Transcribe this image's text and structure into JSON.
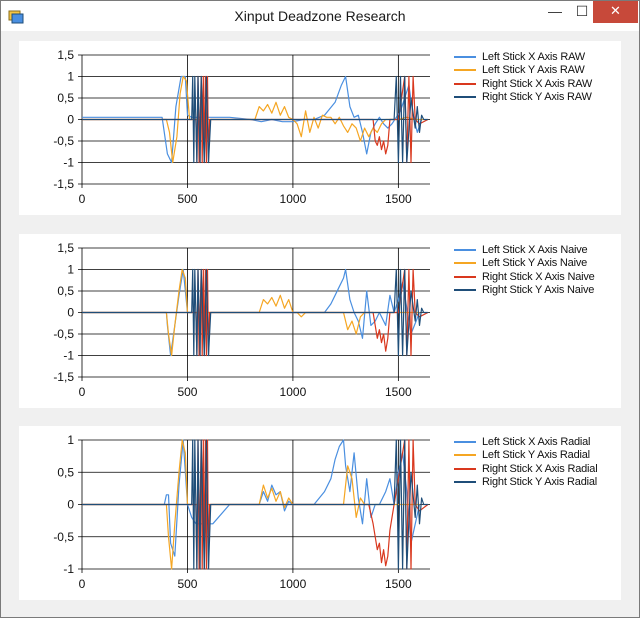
{
  "window": {
    "title": "Xinput Deadzone Research",
    "icons": {
      "app": "app-window-icon",
      "minimize": "minimize-icon",
      "maximize": "maximize-icon",
      "close": "close-icon"
    },
    "minimize_glyph": "—",
    "maximize_glyph": "☐",
    "close_glyph": "✕"
  },
  "colors": {
    "left_x": "#4a8fe0",
    "left_y": "#f5a623",
    "right_x": "#d9381e",
    "right_y": "#1f4e79",
    "grid": "#000000",
    "panel_bg": "#ffffff",
    "window_bg": "#f0f0f0"
  },
  "chart_data": [
    {
      "type": "line",
      "xlim": [
        0,
        1650
      ],
      "ylim": [
        -1.5,
        1.5
      ],
      "xticks": [
        0,
        500,
        1000,
        1500
      ],
      "xtick_labels": [
        "0",
        "500",
        "1000",
        "1500"
      ],
      "yticks": [
        -1.5,
        -1,
        -0.5,
        0,
        0.5,
        1,
        1.5
      ],
      "ytick_labels": [
        "-1,5",
        "-1",
        "-0,5",
        "0",
        "0,5",
        "1",
        "1,5"
      ],
      "grid": true,
      "legend": "right",
      "series": [
        {
          "name": "Left Stick X Axis RAW",
          "key": "left_x",
          "x": [
            0,
            380,
            405,
            425,
            445,
            470,
            490,
            500,
            520,
            540,
            560,
            580,
            600,
            620,
            700,
            800,
            850,
            900,
            950,
            1000,
            1050,
            1100,
            1150,
            1200,
            1230,
            1250,
            1270,
            1290,
            1310,
            1330,
            1350,
            1370,
            1390,
            1410,
            1430,
            1450,
            1470,
            1490,
            1510,
            1530,
            1550,
            1570,
            1590,
            1610
          ],
          "y": [
            0.05,
            0.05,
            -0.8,
            -1.0,
            0.3,
            1.0,
            1.0,
            0.1,
            0.05,
            0.05,
            0.05,
            0.05,
            0.05,
            0.05,
            0.05,
            0.0,
            -0.05,
            0.0,
            -0.05,
            -0.05,
            0.0,
            0.0,
            0.1,
            0.4,
            0.8,
            1.0,
            0.3,
            0.05,
            0.1,
            -0.3,
            -0.8,
            -0.3,
            -0.1,
            0.05,
            -0.1,
            -0.2,
            -0.1,
            0.05,
            0.2,
            0.5,
            0.8,
            0.1,
            -0.3,
            0.0
          ]
        },
        {
          "name": "Left Stick Y Axis RAW",
          "key": "left_y",
          "x": [
            0,
            400,
            415,
            430,
            450,
            465,
            480,
            495,
            510,
            540,
            600,
            700,
            820,
            840,
            860,
            880,
            900,
            920,
            940,
            960,
            980,
            1000,
            1020,
            1040,
            1060,
            1080,
            1100,
            1120,
            1140,
            1160,
            1180,
            1200,
            1220,
            1240,
            1260,
            1280,
            1300,
            1320,
            1340,
            1360,
            1380,
            1400,
            1420,
            1440,
            1460,
            1500,
            1540,
            1580,
            1620
          ],
          "y": [
            0,
            0,
            -0.3,
            -1.0,
            -0.4,
            0.6,
            1.0,
            0.9,
            0.0,
            0.0,
            0.0,
            0.0,
            0.0,
            0.3,
            0.2,
            0.35,
            0.15,
            0.4,
            0.1,
            0.3,
            0.05,
            0.0,
            -0.1,
            -0.4,
            0.2,
            -0.3,
            0.05,
            -0.2,
            0.1,
            0.05,
            0.05,
            -0.1,
            0.05,
            -0.15,
            -0.3,
            -0.1,
            -0.2,
            -0.5,
            -0.2,
            -0.4,
            -0.2,
            -0.3,
            -0.1,
            0.0,
            0.0,
            0.0,
            0.05,
            0.0,
            0.0
          ]
        },
        {
          "name": "Right Stick X Axis RAW",
          "key": "right_x",
          "x": [
            0,
            540,
            545,
            550,
            555,
            565,
            570,
            575,
            580,
            585,
            590,
            595,
            600,
            605,
            700,
            1000,
            1380,
            1390,
            1400,
            1410,
            1420,
            1430,
            1440,
            1450,
            1460,
            1500,
            1530,
            1540,
            1550,
            1560,
            1570,
            1580,
            1600,
            1640
          ],
          "y": [
            0,
            0,
            -1.0,
            1.0,
            -1.0,
            1.0,
            -1.0,
            1.0,
            -1.0,
            1.0,
            -1.0,
            1.0,
            -1.0,
            0.0,
            0.0,
            0.0,
            0.0,
            -0.5,
            -0.6,
            -0.4,
            -0.7,
            -0.5,
            -0.8,
            -0.6,
            0.0,
            0.0,
            1.0,
            -1.0,
            1.0,
            -1.0,
            1.0,
            0.0,
            -0.1,
            0.0
          ]
        },
        {
          "name": "Right Stick Y Axis RAW",
          "key": "right_y",
          "x": [
            0,
            520,
            525,
            530,
            535,
            545,
            550,
            560,
            565,
            580,
            590,
            600,
            610,
            700,
            1000,
            1300,
            1400,
            1480,
            1490,
            1500,
            1510,
            1520,
            1530,
            1540,
            1560,
            1580,
            1590,
            1600,
            1610,
            1620,
            1640
          ],
          "y": [
            0.0,
            0.0,
            1.0,
            -1.0,
            1.0,
            -1.0,
            1.0,
            -1.0,
            1.0,
            -1.0,
            1.0,
            -1.0,
            0.0,
            0.0,
            0.0,
            0.0,
            0.0,
            0.0,
            1.0,
            -1.0,
            1.0,
            -1.0,
            1.0,
            -1.0,
            0.5,
            -0.2,
            0.3,
            -0.3,
            0.1,
            0.0,
            0.0
          ]
        }
      ]
    },
    {
      "type": "line",
      "xlim": [
        0,
        1650
      ],
      "ylim": [
        -1.5,
        1.5
      ],
      "xticks": [
        0,
        500,
        1000,
        1500
      ],
      "xtick_labels": [
        "0",
        "500",
        "1000",
        "1500"
      ],
      "yticks": [
        -1.5,
        -1,
        -0.5,
        0,
        0.5,
        1,
        1.5
      ],
      "ytick_labels": [
        "-1,5",
        "-1",
        "-0,5",
        "0",
        "0,5",
        "1",
        "1,5"
      ],
      "grid": true,
      "legend": "right",
      "series": [
        {
          "name": "Left Stick X Axis Naive",
          "key": "left_x",
          "x": [
            0,
            400,
            405,
            420,
            440,
            460,
            480,
            500,
            520,
            560,
            700,
            1000,
            1150,
            1180,
            1200,
            1220,
            1240,
            1250,
            1270,
            1290,
            1310,
            1330,
            1350,
            1370,
            1390,
            1410,
            1440,
            1460,
            1480,
            1500,
            1520,
            1540,
            1560,
            1600
          ],
          "y": [
            0,
            0,
            -0.3,
            -1.0,
            -0.3,
            0.4,
            1.0,
            0.0,
            0.0,
            0.0,
            0.0,
            0.0,
            0.0,
            0.2,
            0.4,
            0.6,
            0.8,
            1.0,
            0.3,
            0.0,
            -0.2,
            -0.6,
            0.5,
            -0.3,
            -0.2,
            0.0,
            -0.3,
            0.4,
            0.0,
            0.3,
            0.7,
            0.1,
            -0.5,
            0.0
          ]
        },
        {
          "name": "Left Stick Y Axis Naive",
          "key": "left_y",
          "x": [
            0,
            400,
            410,
            425,
            440,
            460,
            475,
            490,
            500,
            520,
            560,
            840,
            860,
            880,
            900,
            920,
            940,
            960,
            980,
            1000,
            1020,
            1040,
            1060,
            1080,
            1100,
            1200,
            1240,
            1260,
            1280,
            1300,
            1320,
            1340,
            1360,
            1380,
            1400,
            1440,
            1480,
            1520,
            1600
          ],
          "y": [
            0,
            0,
            -0.5,
            -1.0,
            -0.3,
            0.5,
            1.0,
            0.8,
            0.0,
            0.0,
            0.0,
            0.0,
            0.3,
            0.2,
            0.35,
            0.15,
            0.4,
            0.1,
            0.3,
            0.0,
            0.0,
            -0.1,
            0.0,
            0.0,
            0.0,
            0.0,
            0.0,
            -0.4,
            -0.2,
            -0.5,
            -0.1,
            0.0,
            0.0,
            0.0,
            0.0,
            0.0,
            0.0,
            0.0,
            0.0
          ]
        },
        {
          "name": "Right Stick X Axis Naive",
          "key": "right_x",
          "x": [
            0,
            540,
            545,
            550,
            555,
            565,
            570,
            575,
            580,
            585,
            590,
            595,
            600,
            605,
            700,
            1380,
            1390,
            1400,
            1410,
            1420,
            1430,
            1440,
            1450,
            1460,
            1500,
            1530,
            1540,
            1550,
            1560,
            1570,
            1580,
            1600,
            1640
          ],
          "y": [
            0,
            0,
            -1.0,
            1.0,
            -1.0,
            1.0,
            -1.0,
            1.0,
            -1.0,
            1.0,
            -1.0,
            1.0,
            -1.0,
            0.0,
            0.0,
            0.0,
            -0.3,
            -0.6,
            -0.4,
            -0.7,
            -0.5,
            -0.9,
            -0.6,
            0.0,
            0.0,
            1.0,
            -1.0,
            1.0,
            -1.0,
            1.0,
            0.0,
            -0.1,
            0.0
          ]
        },
        {
          "name": "Right Stick Y Axis Naive",
          "key": "right_y",
          "x": [
            0,
            520,
            525,
            530,
            535,
            545,
            550,
            560,
            565,
            580,
            590,
            600,
            610,
            700,
            1480,
            1490,
            1500,
            1510,
            1520,
            1530,
            1540,
            1560,
            1580,
            1590,
            1600,
            1610,
            1620,
            1640
          ],
          "y": [
            0.0,
            0.0,
            1.0,
            -1.0,
            1.0,
            -1.0,
            1.0,
            -1.0,
            1.0,
            -1.0,
            1.0,
            -1.0,
            0.0,
            0.0,
            0.0,
            1.0,
            -1.0,
            1.0,
            -1.0,
            1.0,
            -1.0,
            0.5,
            -0.2,
            0.3,
            -0.3,
            0.1,
            0.0,
            0.0
          ]
        }
      ]
    },
    {
      "type": "line",
      "xlim": [
        0,
        1650
      ],
      "ylim": [
        -1,
        1
      ],
      "xticks": [
        0,
        500,
        1000,
        1500
      ],
      "xtick_labels": [
        "0",
        "500",
        "1000",
        "1500"
      ],
      "yticks": [
        -1,
        -0.5,
        0,
        0.5,
        1
      ],
      "ytick_labels": [
        "-1",
        "-0,5",
        "0",
        "0,5",
        "1"
      ],
      "grid": true,
      "legend": "right",
      "series": [
        {
          "name": "Left Stick X Axis Radial",
          "key": "left_x",
          "x": [
            0,
            390,
            400,
            410,
            420,
            440,
            460,
            480,
            500,
            520,
            540,
            560,
            580,
            600,
            620,
            700,
            840,
            860,
            880,
            900,
            920,
            940,
            960,
            980,
            1000,
            1100,
            1150,
            1180,
            1200,
            1220,
            1240,
            1250,
            1270,
            1290,
            1310,
            1330,
            1350,
            1370,
            1390,
            1410,
            1440,
            1460,
            1480,
            1500,
            1520,
            1540,
            1560,
            1600
          ],
          "y": [
            0,
            0,
            0.15,
            0.15,
            -0.6,
            -0.8,
            0.3,
            1.0,
            0.0,
            -0.2,
            -0.3,
            -0.3,
            -0.3,
            -0.3,
            -0.3,
            0.0,
            0.0,
            0.2,
            0.05,
            0.3,
            0.15,
            0.2,
            -0.1,
            0.05,
            0.0,
            0.0,
            0.2,
            0.4,
            0.7,
            0.9,
            1.0,
            0.6,
            0.2,
            0.8,
            0.1,
            -0.3,
            0.4,
            -0.2,
            0.0,
            0.0,
            0.2,
            0.4,
            0.0,
            0.5,
            0.8,
            0.2,
            -0.6,
            0.0
          ]
        },
        {
          "name": "Left Stick Y Axis Radial",
          "key": "left_y",
          "x": [
            0,
            400,
            410,
            425,
            440,
            460,
            475,
            490,
            500,
            520,
            560,
            840,
            860,
            880,
            900,
            920,
            940,
            960,
            980,
            1000,
            1100,
            1200,
            1240,
            1260,
            1280,
            1300,
            1320,
            1340,
            1360,
            1380,
            1400,
            1440,
            1480,
            1520,
            1600
          ],
          "y": [
            0,
            0,
            -0.5,
            -1.0,
            -0.3,
            0.5,
            1.0,
            0.8,
            0.0,
            0.0,
            0.0,
            0.0,
            0.3,
            0.1,
            0.25,
            0.05,
            0.2,
            -0.05,
            0.1,
            0.0,
            0.0,
            0.0,
            0.0,
            0.6,
            0.4,
            -0.2,
            0.1,
            0.0,
            0.0,
            0.0,
            0.0,
            0.0,
            0.0,
            0.0,
            0.0
          ]
        },
        {
          "name": "Right Stick X Axis Radial",
          "key": "right_x",
          "x": [
            0,
            540,
            545,
            550,
            555,
            565,
            570,
            575,
            580,
            585,
            590,
            595,
            600,
            605,
            700,
            1360,
            1380,
            1390,
            1400,
            1410,
            1420,
            1430,
            1440,
            1450,
            1460,
            1480,
            1530,
            1540,
            1550,
            1560,
            1570,
            1580,
            1600,
            1640
          ],
          "y": [
            0,
            0,
            -1.0,
            1.0,
            -1.0,
            1.0,
            -1.0,
            1.0,
            -1.0,
            1.0,
            -1.0,
            1.0,
            -1.0,
            0.0,
            0.0,
            0.0,
            -0.3,
            -0.5,
            -0.7,
            -0.6,
            -0.9,
            -0.7,
            -0.95,
            -0.8,
            -0.4,
            0.0,
            1.0,
            -1.0,
            1.0,
            -1.0,
            1.0,
            0.0,
            -0.1,
            0.0
          ]
        },
        {
          "name": "Right Stick Y Axis Radial",
          "key": "right_y",
          "x": [
            0,
            520,
            525,
            530,
            535,
            545,
            550,
            560,
            565,
            580,
            590,
            600,
            610,
            700,
            1480,
            1490,
            1500,
            1510,
            1520,
            1530,
            1540,
            1560,
            1580,
            1590,
            1600,
            1610,
            1620,
            1640
          ],
          "y": [
            0.0,
            0.0,
            1.0,
            -1.0,
            1.0,
            -1.0,
            1.0,
            -1.0,
            1.0,
            -1.0,
            1.0,
            -1.0,
            0.0,
            0.0,
            0.0,
            1.0,
            -1.0,
            1.0,
            -1.0,
            1.0,
            -1.0,
            0.5,
            -0.2,
            0.3,
            -0.3,
            0.1,
            0.0,
            0.0
          ]
        }
      ]
    }
  ]
}
